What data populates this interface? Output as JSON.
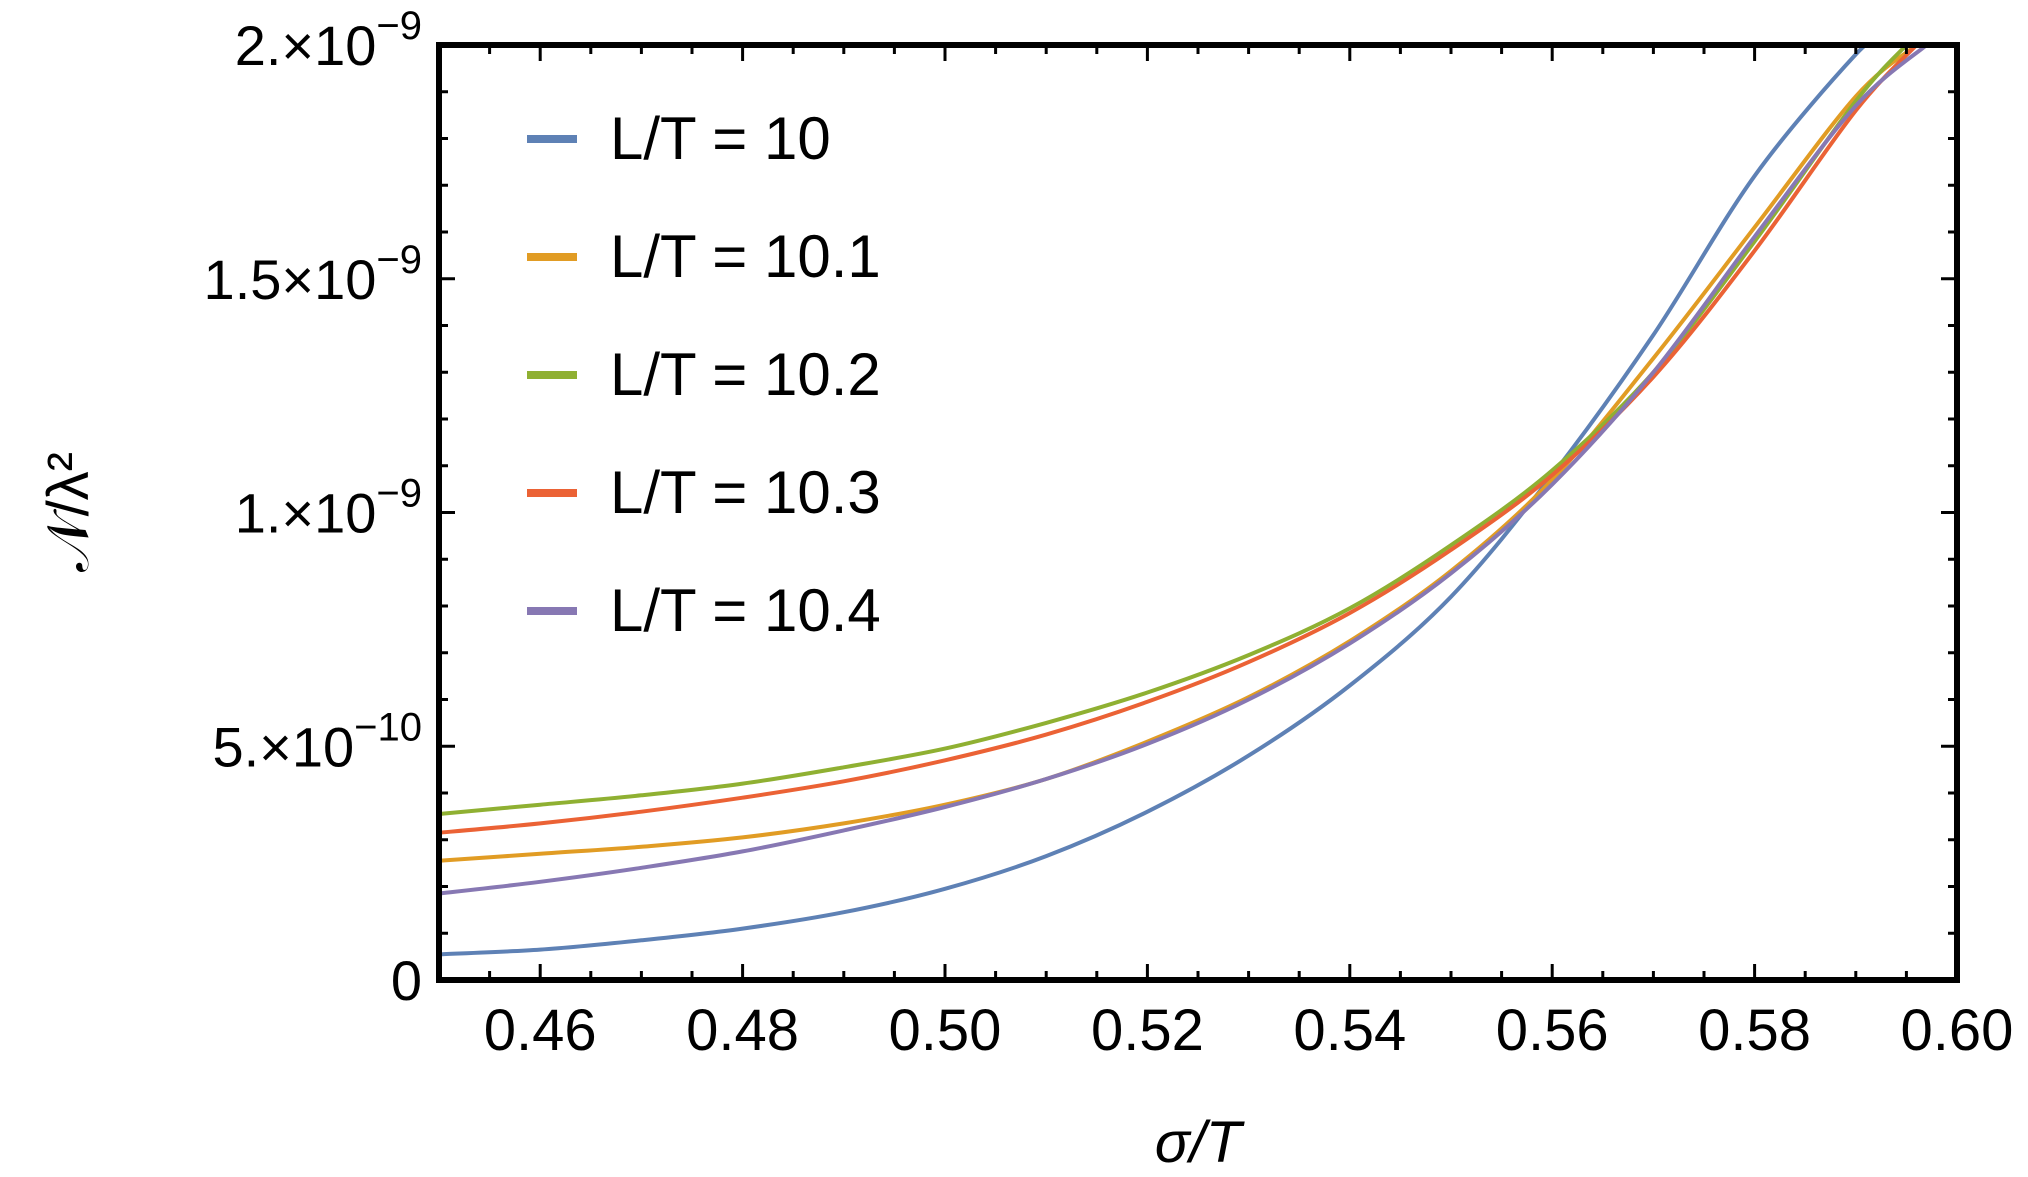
{
  "chart_data": {
    "type": "line",
    "title": "",
    "xlabel": "σ/T",
    "ylabel": "𝒩/λ²",
    "xlim": [
      0.45,
      0.6
    ],
    "ylim": [
      0,
      2e-09
    ],
    "x_ticks": [
      {
        "value": 0.46,
        "label": "0.46"
      },
      {
        "value": 0.48,
        "label": "0.48"
      },
      {
        "value": 0.5,
        "label": "0.50"
      },
      {
        "value": 0.52,
        "label": "0.52"
      },
      {
        "value": 0.54,
        "label": "0.54"
      },
      {
        "value": 0.56,
        "label": "0.56"
      },
      {
        "value": 0.58,
        "label": "0.58"
      },
      {
        "value": 0.6,
        "label": "0.60"
      }
    ],
    "y_ticks": [
      {
        "value": 0,
        "mantissa": "0",
        "exponent": ""
      },
      {
        "value": 5e-10,
        "mantissa": "5.×10",
        "exponent": "−10"
      },
      {
        "value": 1e-09,
        "mantissa": "1.×10",
        "exponent": "−9"
      },
      {
        "value": 1.5e-09,
        "mantissa": "1.5×10",
        "exponent": "−9"
      },
      {
        "value": 2e-09,
        "mantissa": "2.×10",
        "exponent": "−9"
      }
    ],
    "legend_position": "top-left",
    "grid": false,
    "series": [
      {
        "name": "L/T = 10",
        "color": "#5e81b5",
        "x": [
          0.45,
          0.46,
          0.47,
          0.48,
          0.49,
          0.5,
          0.51,
          0.52,
          0.53,
          0.54,
          0.55,
          0.56,
          0.57,
          0.58,
          0.59,
          0.592
        ],
        "y": [
          5.5e-11,
          6.5e-11,
          8.5e-11,
          1.1e-10,
          1.45e-10,
          1.95e-10,
          2.65e-10,
          3.6e-10,
          4.8e-10,
          6.3e-10,
          8.2e-10,
          1.08e-09,
          1.38e-09,
          1.72e-09,
          1.98e-09,
          2e-09
        ]
      },
      {
        "name": "L/T = 10.1",
        "color": "#e19c24",
        "x": [
          0.45,
          0.46,
          0.47,
          0.48,
          0.49,
          0.5,
          0.51,
          0.52,
          0.53,
          0.54,
          0.55,
          0.56,
          0.57,
          0.58,
          0.59,
          0.596
        ],
        "y": [
          2.55e-10,
          2.7e-10,
          2.85e-10,
          3.05e-10,
          3.35e-10,
          3.75e-10,
          4.3e-10,
          5.1e-10,
          6.05e-10,
          7.25e-10,
          8.75e-10,
          1.07e-09,
          1.33e-09,
          1.61e-09,
          1.89e-09,
          2e-09
        ]
      },
      {
        "name": "L/T = 10.2",
        "color": "#8fb032",
        "x": [
          0.45,
          0.46,
          0.47,
          0.48,
          0.49,
          0.5,
          0.51,
          0.52,
          0.53,
          0.54,
          0.55,
          0.56,
          0.57,
          0.58,
          0.59,
          0.595
        ],
        "y": [
          3.55e-10,
          3.75e-10,
          3.95e-10,
          4.2e-10,
          4.55e-10,
          4.95e-10,
          5.5e-10,
          6.15e-10,
          6.95e-10,
          7.95e-10,
          9.3e-10,
          1.09e-09,
          1.3e-09,
          1.58e-09,
          1.88e-09,
          2e-09
        ]
      },
      {
        "name": "L/T = 10.3",
        "color": "#eb6235",
        "x": [
          0.45,
          0.46,
          0.47,
          0.48,
          0.49,
          0.5,
          0.51,
          0.52,
          0.53,
          0.54,
          0.55,
          0.56,
          0.57,
          0.58,
          0.59,
          0.596
        ],
        "y": [
          3.15e-10,
          3.35e-10,
          3.6e-10,
          3.9e-10,
          4.25e-10,
          4.7e-10,
          5.25e-10,
          5.95e-10,
          6.8e-10,
          7.85e-10,
          9.2e-10,
          1.08e-09,
          1.29e-09,
          1.56e-09,
          1.86e-09,
          2e-09
        ]
      },
      {
        "name": "L/T = 10.4",
        "color": "#8778b3",
        "x": [
          0.45,
          0.46,
          0.47,
          0.48,
          0.49,
          0.5,
          0.51,
          0.52,
          0.53,
          0.54,
          0.55,
          0.56,
          0.57,
          0.58,
          0.59,
          0.597
        ],
        "y": [
          1.85e-10,
          2.1e-10,
          2.4e-10,
          2.75e-10,
          3.2e-10,
          3.7e-10,
          4.3e-10,
          5.05e-10,
          6e-10,
          7.2e-10,
          8.7e-10,
          1.06e-09,
          1.3e-09,
          1.59e-09,
          1.87e-09,
          2e-09
        ]
      }
    ]
  }
}
